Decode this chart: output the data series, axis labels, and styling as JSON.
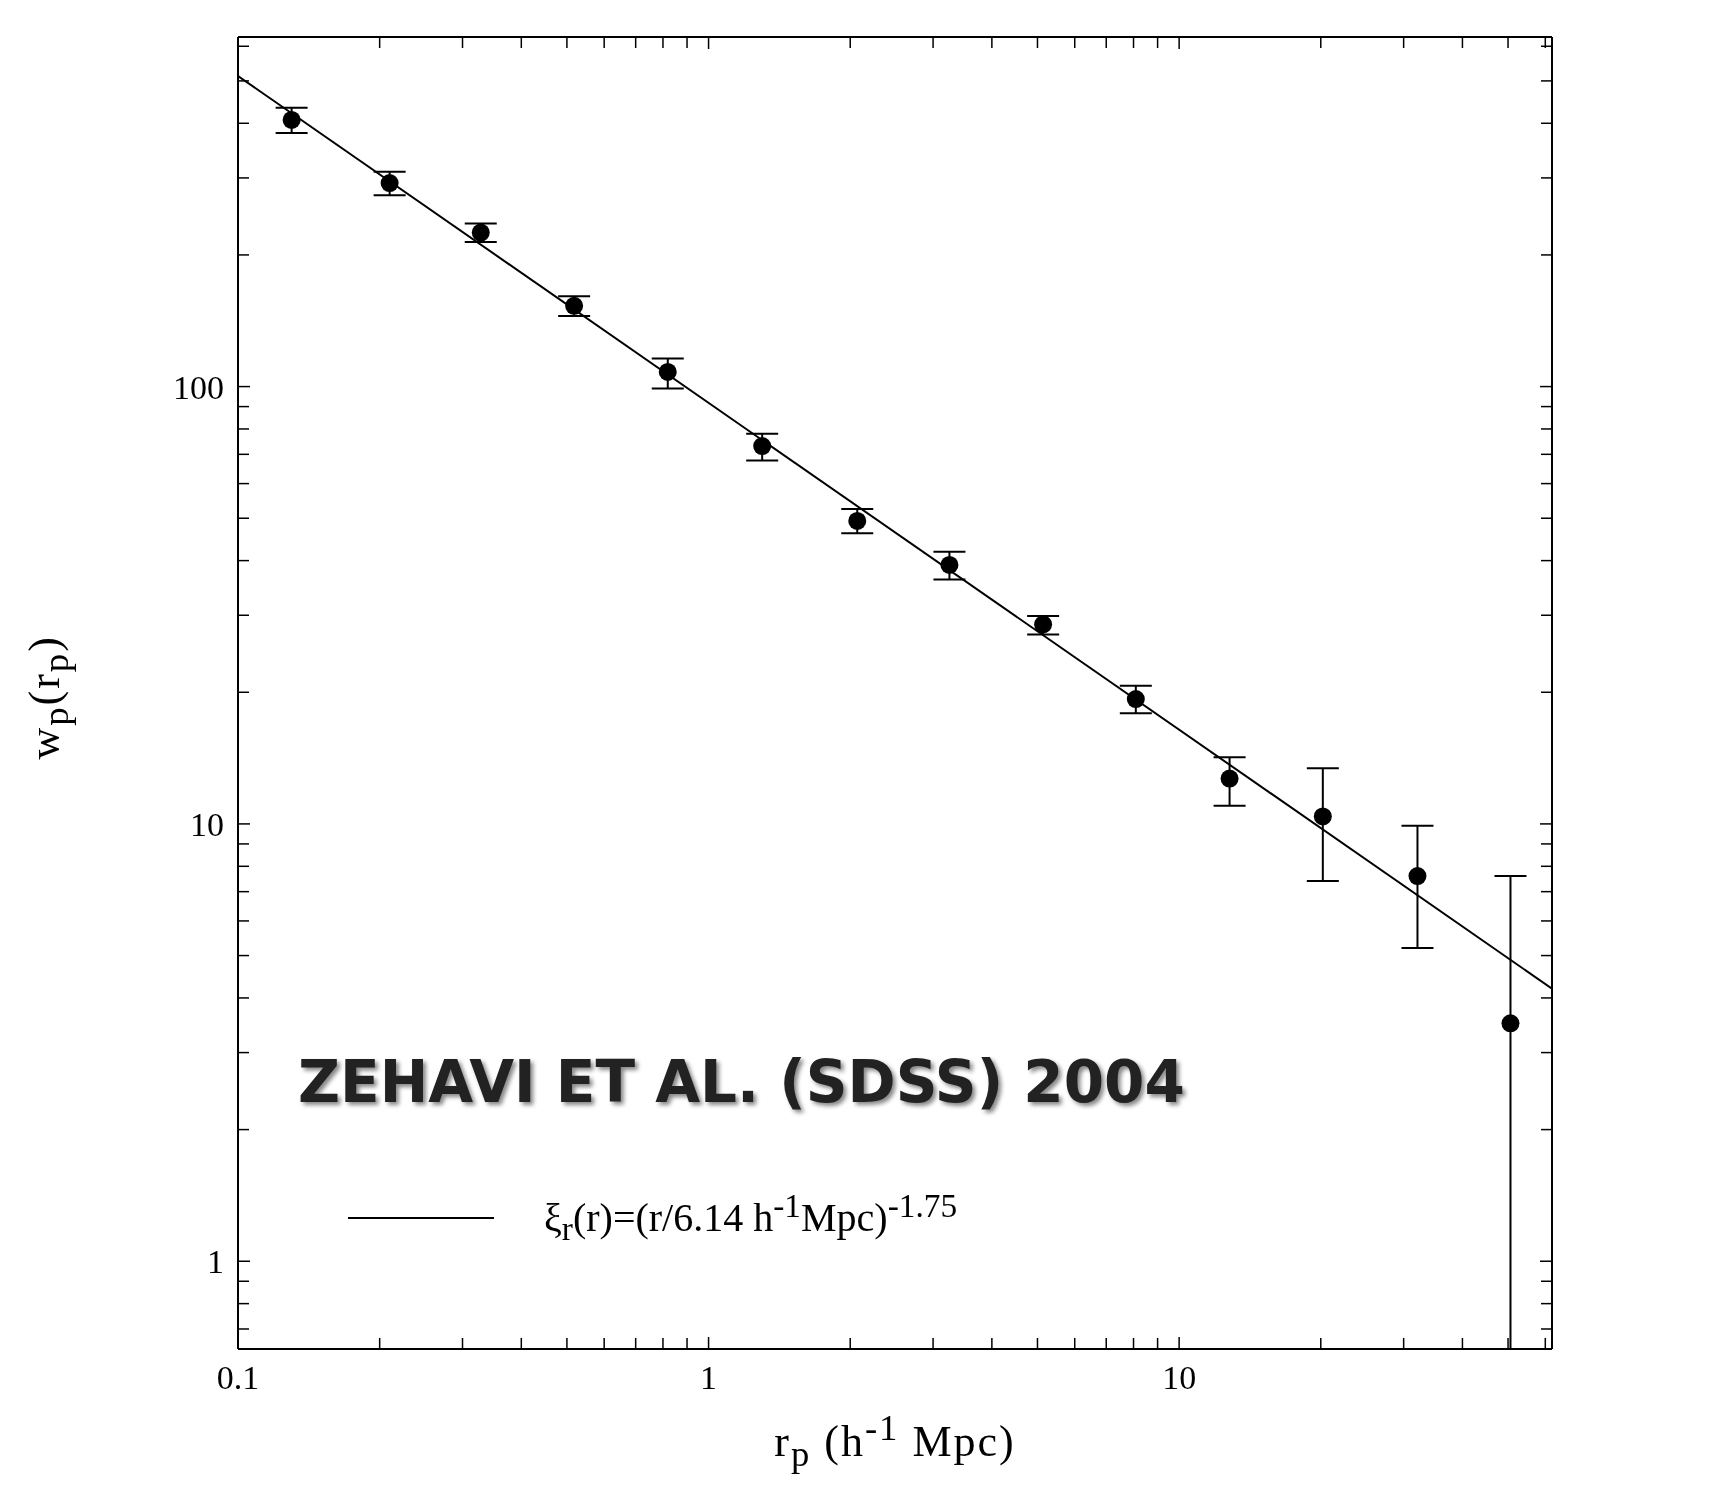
{
  "chart_data": {
    "type": "scatter",
    "xlabel": "r$_{p}$ (h$^{-1}$ Mpc)",
    "ylabel": "w$_{p}$(r$_{p}$)",
    "annotations": [
      "ZEHAVI ET AL. (SDSS) 2004"
    ],
    "log": "xy",
    "grid": false,
    "legend": "bottom left",
    "xlim": [
      0.1,
      62
    ],
    "ylim": [
      0.63,
      630
    ],
    "xticks": [
      0.1,
      {
        "value": 0.2,
        "label": null
      },
      {
        "value": 0.3,
        "label": null
      },
      {
        "value": 0.4,
        "label": null
      },
      {
        "value": 0.5,
        "label": null
      },
      {
        "value": 0.6,
        "label": null
      },
      {
        "value": 0.7,
        "label": null
      },
      {
        "value": 0.8,
        "label": null
      },
      {
        "value": 0.9,
        "label": null
      },
      1,
      {
        "value": 2,
        "label": null
      },
      {
        "value": 3,
        "label": null
      },
      {
        "value": 4,
        "label": null
      },
      {
        "value": 5,
        "label": null
      },
      {
        "value": 6,
        "label": null
      },
      {
        "value": 7,
        "label": null
      },
      {
        "value": 8,
        "label": null
      },
      {
        "value": 9,
        "label": null
      },
      10,
      {
        "value": 20,
        "label": null
      },
      {
        "value": 30,
        "label": null
      },
      {
        "value": 40,
        "label": null
      },
      {
        "value": 50,
        "label": null
      },
      {
        "value": 60,
        "label": null
      }
    ],
    "yticks": [
      {
        "value": 0.7,
        "label": null
      },
      {
        "value": 0.8,
        "label": null
      },
      {
        "value": 0.9,
        "label": null
      },
      1,
      {
        "value": 2,
        "label": null
      },
      {
        "value": 3,
        "label": null
      },
      {
        "value": 4,
        "label": null
      },
      {
        "value": 5,
        "label": null
      },
      {
        "value": 6,
        "label": null
      },
      {
        "value": 7,
        "label": null
      },
      {
        "value": 8,
        "label": null
      },
      {
        "value": 9,
        "label": null
      },
      10,
      {
        "value": 20,
        "label": null
      },
      {
        "value": 30,
        "label": null
      },
      {
        "value": 40,
        "label": null
      },
      {
        "value": 50,
        "label": null
      },
      {
        "value": 60,
        "label": null
      },
      {
        "value": 70,
        "label": null
      },
      {
        "value": 80,
        "label": null
      },
      {
        "value": 90,
        "label": null
      },
      100,
      {
        "value": 200,
        "label": null
      },
      {
        "value": 300,
        "label": null
      },
      {
        "value": 400,
        "label": null
      },
      {
        "value": 500,
        "label": null
      },
      {
        "value": 600,
        "label": null
      }
    ],
    "series": [
      {
        "type": "scatter",
        "marker": "circle",
        "color": "#000000",
        "x": [
          0.13,
          0.21,
          0.328,
          0.518,
          0.819,
          1.3,
          2.07,
          3.25,
          5.14,
          8.09,
          12.8,
          20.2,
          32.1,
          50.6
        ],
        "values": [
          407,
          292,
          225,
          153,
          108,
          73.1,
          49.3,
          39.1,
          28.6,
          19.3,
          12.7,
          10.4,
          7.6,
          3.5
        ],
        "errors": [
          [
            380,
            434
          ],
          [
            274,
            310
          ],
          [
            214,
            236
          ],
          [
            145,
            161
          ],
          [
            99,
            116
          ],
          [
            67.8,
            78
          ],
          [
            46.2,
            52.5
          ],
          [
            36.2,
            41.9
          ],
          [
            27.1,
            29.9
          ],
          [
            17.9,
            20.7
          ],
          [
            11.0,
            14.2
          ],
          [
            7.4,
            13.4
          ],
          [
            5.2,
            9.9
          ],
          [
            0.63,
            7.6
          ]
        ]
      },
      {
        "type": "line",
        "name": "ξ$_{r}$(r)=(r/6.14 h$^{-1}$Mpc)$^{-1.75}$",
        "color": "#000000",
        "x": [
          0.1,
          62
        ],
        "values": [
          513,
          4.2
        ]
      }
    ]
  }
}
